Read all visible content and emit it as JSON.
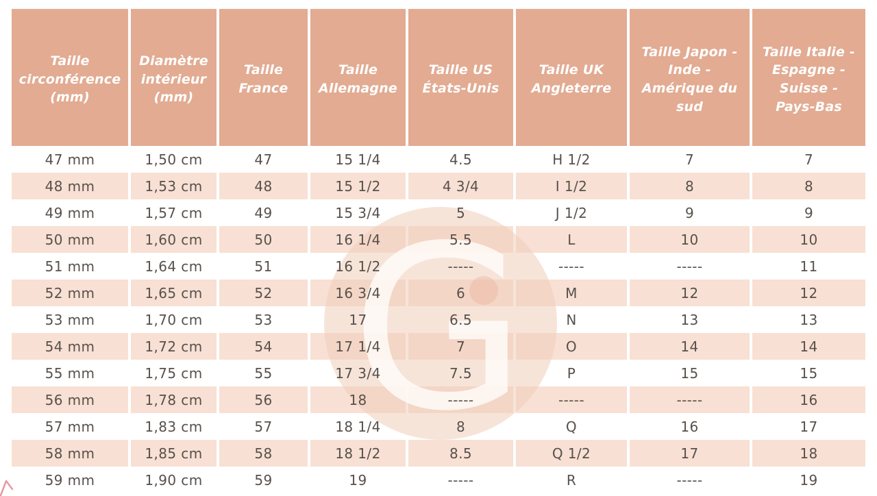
{
  "chart_data": {
    "type": "table",
    "headers": [
      "Taille circonférence (mm)",
      "Diamètre intérieur (mm)",
      "Taille France",
      "Taille Allemagne",
      "Taille US États-Unis",
      "Taille UK Angleterre",
      "Taille Japon - Inde - Amérique du sud",
      "Taille Italie - Espagne - Suisse - Pays-Bas"
    ],
    "rows": [
      [
        "47 mm",
        "1,50 cm",
        "47",
        "15 1/4",
        "4.5",
        "H 1/2",
        "7",
        "7"
      ],
      [
        "48 mm",
        "1,53 cm",
        "48",
        "15 1/2",
        "4 3/4",
        "I 1/2",
        "8",
        "8"
      ],
      [
        "49 mm",
        "1,57 cm",
        "49",
        "15 3/4",
        "5",
        "J 1/2",
        "9",
        "9"
      ],
      [
        "50 mm",
        "1,60 cm",
        "50",
        "16 1/4",
        "5.5",
        "L",
        "10",
        "10"
      ],
      [
        "51 mm",
        "1,64 cm",
        "51",
        "16 1/2",
        "-----",
        "-----",
        "-----",
        "11"
      ],
      [
        "52 mm",
        "1,65 cm",
        "52",
        "16 3/4",
        "6",
        "M",
        "12",
        "12"
      ],
      [
        "53 mm",
        "1,70 cm",
        "53",
        "17",
        "6.5",
        "N",
        "13",
        "13"
      ],
      [
        "54 mm",
        "1,72 cm",
        "54",
        "17 1/4",
        "7",
        "O",
        "14",
        "14"
      ],
      [
        "55 mm",
        "1,75 cm",
        "55",
        "17 3/4",
        "7.5",
        "P",
        "15",
        "15"
      ],
      [
        "56 mm",
        "1,78 cm",
        "56",
        "18",
        "-----",
        "-----",
        "-----",
        "16"
      ],
      [
        "57 mm",
        "1,83 cm",
        "57",
        "18 1/4",
        "8",
        "Q",
        "16",
        "17"
      ],
      [
        "58 mm",
        "1,85 cm",
        "58",
        "18 1/2",
        "8.5",
        "Q 1/2",
        "17",
        "18"
      ],
      [
        "59 mm",
        "1,90 cm",
        "59",
        "19",
        "-----",
        "R",
        "-----",
        "19"
      ]
    ]
  },
  "watermark": {
    "letter": "G"
  },
  "colors": {
    "header_bg": "#e2ab92",
    "header_text": "#ffffff",
    "row_bg": "#ffffff",
    "row_alt_bg": "#f8e0d4",
    "body_text": "#57504b",
    "watermark_disk": "rgba(240,205,185,0.55)",
    "watermark_glyph": "rgba(255,252,250,0.80)",
    "watermark_dot": "rgba(230,172,146,0.35)",
    "corner_mark": "#e59aa2"
  }
}
